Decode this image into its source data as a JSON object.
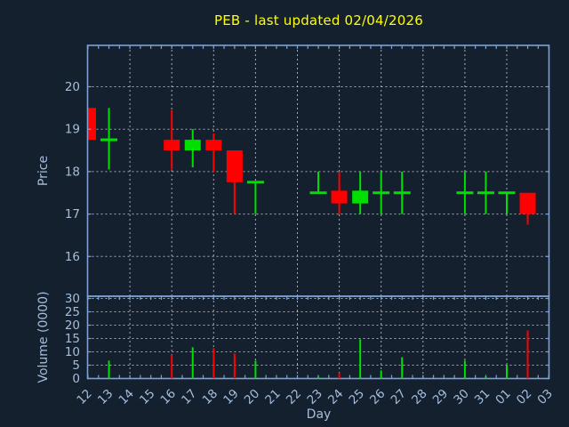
{
  "colors": {
    "background": "#14202e",
    "axis": "#7aa2d4",
    "tick_label": "#a4bedd",
    "grid": "#c9ced8",
    "title": "#ffff00",
    "up": "#00df00",
    "down": "#ff0000"
  },
  "chart_data": {
    "type": "candlestick",
    "title": "PEB - last updated 02/04/2026",
    "xlabel": "Day",
    "ylabel_price": "Price",
    "ylabel_volume": "Volume (0000)",
    "price_axis": {
      "ticks": [
        16,
        17,
        18,
        19,
        20
      ],
      "ylim": [
        15.05,
        20.95
      ],
      "grid": true
    },
    "volume_axis": {
      "ticks": [
        0,
        5,
        10,
        15,
        20,
        25,
        30
      ],
      "ylim": [
        0,
        30.8
      ],
      "grid": true
    },
    "days": [
      "12",
      "13",
      "14",
      "15",
      "16",
      "17",
      "18",
      "19",
      "20",
      "21",
      "22",
      "23",
      "24",
      "25",
      "26",
      "27",
      "28",
      "29",
      "30",
      "31",
      "01",
      "02",
      "03"
    ],
    "grid_days": [
      "14",
      "16",
      "18",
      "20",
      "22",
      "24",
      "26",
      "28",
      "30",
      "01"
    ],
    "candles": [
      {
        "day": "12",
        "open": 19.5,
        "high": 19.5,
        "low": 18.75,
        "close": 18.75,
        "volume": 0
      },
      {
        "day": "13",
        "open": 18.75,
        "high": 19.5,
        "low": 18.05,
        "close": 18.75,
        "volume": 6.7
      },
      {
        "day": "16",
        "open": 18.75,
        "high": 19.45,
        "low": 18.05,
        "close": 18.5,
        "volume": 8.9
      },
      {
        "day": "17",
        "open": 18.5,
        "high": 19.0,
        "low": 18.1,
        "close": 18.75,
        "volume": 11.7
      },
      {
        "day": "18",
        "open": 18.75,
        "high": 18.9,
        "low": 18.0,
        "close": 18.5,
        "volume": 11.4
      },
      {
        "day": "19",
        "open": 18.5,
        "high": 18.5,
        "low": 17.0,
        "close": 17.75,
        "volume": 9.4
      },
      {
        "day": "20",
        "open": 17.75,
        "high": 17.75,
        "low": 17.0,
        "close": 17.75,
        "volume": 6.7
      },
      {
        "day": "23",
        "open": 17.5,
        "high": 18.0,
        "low": 17.5,
        "close": 17.5,
        "volume": 0.6
      },
      {
        "day": "24",
        "open": 17.55,
        "high": 18.0,
        "low": 17.0,
        "close": 17.25,
        "volume": 2.2
      },
      {
        "day": "25",
        "open": 17.25,
        "high": 18.0,
        "low": 17.0,
        "close": 17.55,
        "volume": 14.7
      },
      {
        "day": "26",
        "open": 17.5,
        "high": 18.0,
        "low": 17.0,
        "close": 17.5,
        "volume": 3.0
      },
      {
        "day": "27",
        "open": 17.5,
        "high": 18.0,
        "low": 17.0,
        "close": 17.5,
        "volume": 8.0
      },
      {
        "day": "30",
        "open": 17.5,
        "high": 18.0,
        "low": 17.0,
        "close": 17.5,
        "volume": 6.7
      },
      {
        "day": "31",
        "open": 17.5,
        "high": 18.0,
        "low": 17.0,
        "close": 17.5,
        "volume": 0.8
      },
      {
        "day": "01",
        "open": 17.5,
        "high": 17.5,
        "low": 17.0,
        "close": 17.5,
        "volume": 5.0
      },
      {
        "day": "02",
        "open": 17.5,
        "high": 17.5,
        "low": 16.75,
        "close": 17.0,
        "volume": 18.0
      }
    ]
  }
}
